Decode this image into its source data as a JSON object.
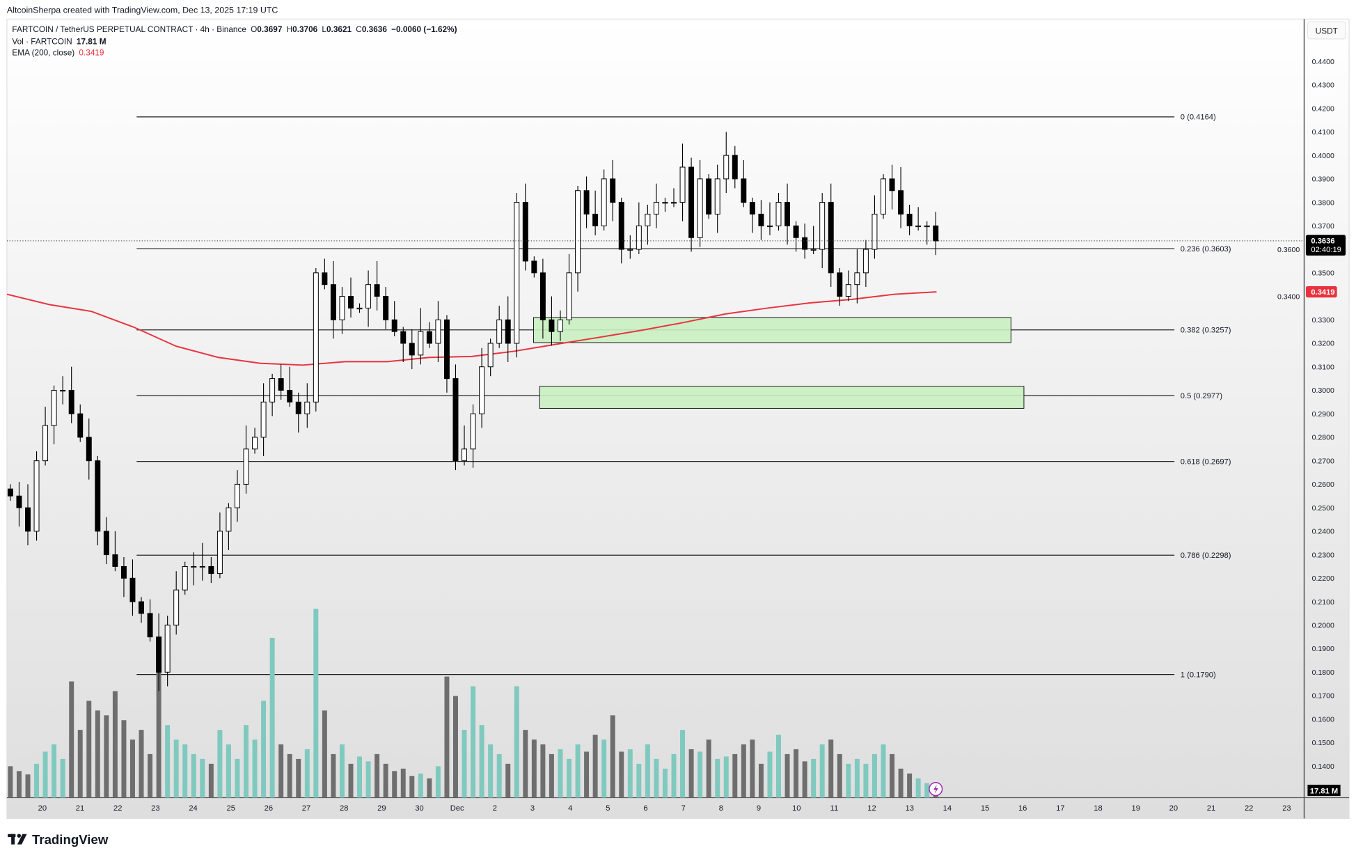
{
  "attribution": "AltcoinSherpa created with TradingView.com, Dec 13, 2025 17:19 UTC",
  "legend": {
    "symbol": "FARTCOIN / TetherUS PERPETUAL CONTRACT · 4h · Binance",
    "o_label": "O",
    "o": "0.3697",
    "h_label": "H",
    "h": "0.3706",
    "l_label": "L",
    "l": "0.3621",
    "c_label": "C",
    "c": "0.3636",
    "change": "−0.0060 (−1.62%)",
    "vol_label": "Vol · FARTCOIN",
    "vol": "17.81 M",
    "ema_label": "EMA (200, close)",
    "ema": "0.3419"
  },
  "currency_button": "USDT",
  "price_tag": {
    "price": "0.3636",
    "countdown": "02:40:19"
  },
  "ema_tag": "0.3419",
  "volume_tag": "17.81 M",
  "logo": "TradingView",
  "colors": {
    "up_volume": "#7fc9bf",
    "down_volume": "#6e6e6e",
    "ema": "#e8333f",
    "zone": "#c9f0c2",
    "zone_border": "#1a1a1a",
    "candle_up": "#ffffff",
    "candle_down": "#000000"
  },
  "chart_data": {
    "type": "candlestick",
    "timeframe": "4h",
    "ylim": [
      0.13,
      0.45
    ],
    "y_ticks": [
      "0.4400",
      "0.4300",
      "0.4200",
      "0.4100",
      "0.4000",
      "0.3900",
      "0.3800",
      "0.3700",
      "0.3600",
      "0.3500",
      "0.3400",
      "0.3300",
      "0.3200",
      "0.3100",
      "0.3000",
      "0.2900",
      "0.2800",
      "0.2700",
      "0.2600",
      "0.2500",
      "0.2400",
      "0.2300",
      "0.2200",
      "0.2100",
      "0.2000",
      "0.1900",
      "0.1800",
      "0.1700",
      "0.1600",
      "0.1500",
      "0.1400"
    ],
    "x_ticks": [
      "20",
      "21",
      "22",
      "23",
      "24",
      "25",
      "26",
      "27",
      "28",
      "29",
      "30",
      "Dec",
      "2",
      "3",
      "4",
      "5",
      "6",
      "7",
      "8",
      "9",
      "10",
      "11",
      "12",
      "13",
      "14",
      "15",
      "16",
      "17",
      "18",
      "19",
      "20",
      "21",
      "22",
      "23"
    ],
    "first_open": 0.258,
    "closes": [
      0.255,
      0.25,
      0.24,
      0.27,
      0.285,
      0.3,
      0.3,
      0.29,
      0.28,
      0.27,
      0.24,
      0.23,
      0.225,
      0.22,
      0.21,
      0.205,
      0.195,
      0.18,
      0.2,
      0.215,
      0.225,
      0.225,
      0.225,
      0.222,
      0.24,
      0.25,
      0.26,
      0.275,
      0.28,
      0.295,
      0.305,
      0.3,
      0.295,
      0.29,
      0.295,
      0.35,
      0.345,
      0.33,
      0.34,
      0.335,
      0.335,
      0.345,
      0.34,
      0.33,
      0.325,
      0.32,
      0.315,
      0.325,
      0.32,
      0.33,
      0.305,
      0.27,
      0.275,
      0.29,
      0.31,
      0.32,
      0.33,
      0.32,
      0.38,
      0.355,
      0.35,
      0.33,
      0.325,
      0.33,
      0.35,
      0.385,
      0.375,
      0.37,
      0.39,
      0.38,
      0.36,
      0.36,
      0.37,
      0.375,
      0.38,
      0.38,
      0.38,
      0.395,
      0.365,
      0.39,
      0.375,
      0.39,
      0.4,
      0.39,
      0.38,
      0.375,
      0.37,
      0.37,
      0.38,
      0.37,
      0.365,
      0.36,
      0.36,
      0.38,
      0.35,
      0.34,
      0.345,
      0.35,
      0.36,
      0.375,
      0.39,
      0.385,
      0.375,
      0.37,
      0.37,
      0.37,
      0.3636
    ],
    "volumes_m": [
      65,
      55,
      48,
      70,
      95,
      110,
      80,
      240,
      140,
      200,
      180,
      170,
      220,
      160,
      120,
      140,
      90,
      260,
      150,
      120,
      110,
      90,
      80,
      70,
      140,
      110,
      80,
      150,
      120,
      200,
      330,
      110,
      90,
      80,
      100,
      390,
      180,
      90,
      110,
      70,
      85,
      75,
      90,
      70,
      55,
      60,
      45,
      50,
      40,
      65,
      250,
      210,
      140,
      230,
      150,
      110,
      90,
      70,
      230,
      140,
      120,
      110,
      90,
      100,
      80,
      110,
      95,
      130,
      120,
      170,
      95,
      100,
      70,
      110,
      80,
      60,
      90,
      140,
      100,
      95,
      120,
      80,
      85,
      90,
      110,
      120,
      70,
      95,
      130,
      90,
      100,
      75,
      80,
      110,
      120,
      90,
      70,
      80,
      70,
      90,
      110,
      90,
      60,
      50,
      40,
      30,
      17.81
    ],
    "ema_200": [
      0.3409,
      0.3365,
      0.3336,
      0.3269,
      0.3188,
      0.314,
      0.3115,
      0.3107,
      0.3122,
      0.3122,
      0.314,
      0.3144,
      0.3166,
      0.3196,
      0.3225,
      0.3255,
      0.3288,
      0.3325,
      0.335,
      0.3372,
      0.3387,
      0.3409,
      0.3419
    ],
    "fib_levels": [
      {
        "ratio": "0",
        "price": 0.4164,
        "label": "0 (0.4164)"
      },
      {
        "ratio": "0.236",
        "price": 0.3603,
        "label": "0.236 (0.3603)"
      },
      {
        "ratio": "0.382",
        "price": 0.3257,
        "label": "0.382 (0.3257)"
      },
      {
        "ratio": "0.5",
        "price": 0.2977,
        "label": "0.5 (0.2977)"
      },
      {
        "ratio": "0.618",
        "price": 0.2697,
        "label": "0.618 (0.2697)"
      },
      {
        "ratio": "0.786",
        "price": 0.2298,
        "label": "0.786 (0.2298)"
      },
      {
        "ratio": "1",
        "price": 0.179,
        "label": "1 (0.1790)"
      }
    ],
    "zones": [
      {
        "top": 0.331,
        "bottom": 0.3203
      },
      {
        "top": 0.3017,
        "bottom": 0.2923
      }
    ],
    "last_price": 0.3636
  }
}
